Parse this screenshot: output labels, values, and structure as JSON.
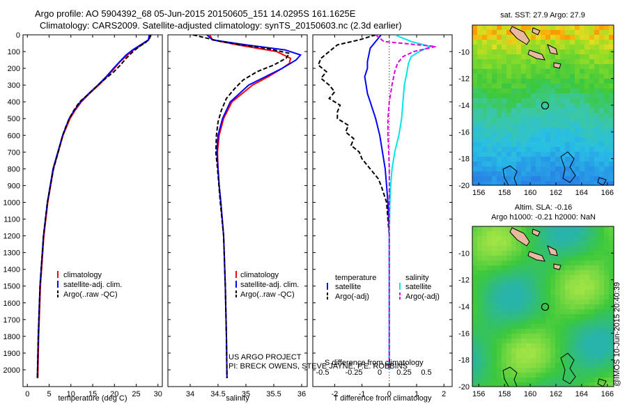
{
  "title_line1": "Argo profile: AO 5904392_68 05-Jun-2015 20150605_151 14.0295S 161.1625E",
  "title_line2": "Climatology: CARS2009. Satellite-adjusted climatology: synTS_20150603.nc (2.3d earlier)",
  "credit": "@IMOS 10-Jun-2015 20:40:39",
  "project_line1": "US ARGO PROJECT",
  "project_line2": "PI: BRECK OWENS, STEVE JAYNE, P.E. ROBBINS",
  "colors": {
    "climatology": "#ff0000",
    "satellite": "#0000ff",
    "argo": "#000000",
    "sal_satellite": "#00e5e5",
    "sal_argo": "#e000e0",
    "land": "#e8b8a0"
  },
  "chart_data": [
    {
      "type": "line",
      "xlabel": "temperature (deg C)",
      "ylabel": "",
      "xlim": [
        -1,
        31
      ],
      "ylim": [
        2100,
        0
      ],
      "xticks": [
        0,
        5,
        10,
        15,
        20,
        25,
        30
      ],
      "yticks": [
        0,
        100,
        200,
        300,
        400,
        500,
        600,
        700,
        800,
        900,
        1000,
        1100,
        1200,
        1300,
        1400,
        1500,
        1600,
        1700,
        1800,
        1900,
        2000
      ],
      "legend": [
        "climatology",
        "satellite-adj. clim.",
        "Argo(..raw -QC)"
      ],
      "series": [
        {
          "name": "climatology",
          "depth": [
            0,
            30,
            60,
            90,
            120,
            160,
            200,
            250,
            300,
            350,
            400,
            450,
            500,
            600,
            700,
            800,
            1000,
            1200,
            1500,
            1800,
            2050
          ],
          "values": [
            28.2,
            27.9,
            26.3,
            24.4,
            23.0,
            21.3,
            20.0,
            18.3,
            16.4,
            14.3,
            12.4,
            11.0,
            9.8,
            8.2,
            7.1,
            6.0,
            4.7,
            3.8,
            3.0,
            2.6,
            2.4
          ]
        },
        {
          "name": "satellite-adj. clim.",
          "depth": [
            0,
            30,
            60,
            90,
            120,
            160,
            200,
            250,
            300,
            350,
            400,
            450,
            500,
            600,
            700,
            800,
            1000,
            1200,
            1500,
            1800,
            2050
          ],
          "values": [
            28.0,
            27.8,
            26.0,
            24.2,
            22.7,
            21.2,
            19.8,
            18.1,
            16.2,
            14.1,
            12.2,
            10.8,
            9.6,
            8.1,
            7.0,
            5.9,
            4.6,
            3.7,
            2.9,
            2.5,
            2.3
          ]
        },
        {
          "name": "Argo(..raw -QC)",
          "depth": [
            0,
            25,
            45,
            70,
            100,
            140,
            180,
            220,
            260,
            300,
            350,
            400,
            450,
            500,
            550,
            600,
            650,
            700,
            800,
            900,
            1000,
            1200,
            1500,
            1800,
            2050
          ],
          "values": [
            28.4,
            28.0,
            27.2,
            25.7,
            24.3,
            22.7,
            21.4,
            19.9,
            18.0,
            16.2,
            14.2,
            12.0,
            10.7,
            9.6,
            8.8,
            8.1,
            7.6,
            7.1,
            6.0,
            5.3,
            4.6,
            3.7,
            2.9,
            2.5,
            2.3
          ]
        }
      ]
    },
    {
      "type": "line",
      "xlabel": "salinity",
      "ylabel": "",
      "xlim": [
        33.6,
        36.1
      ],
      "ylim": [
        2100,
        0
      ],
      "xticks": [
        34,
        34.5,
        35,
        35.5,
        36
      ],
      "legend": [
        "climatology",
        "satellite-adj. clim.",
        "Argo(..raw -QC)"
      ],
      "series": [
        {
          "name": "climatology",
          "depth": [
            0,
            30,
            60,
            100,
            140,
            170,
            200,
            250,
            300,
            400,
            500,
            600,
            700,
            800,
            900,
            1000,
            1200,
            1500,
            1800,
            2050
          ],
          "values": [
            34.35,
            34.4,
            34.85,
            35.55,
            35.8,
            35.78,
            35.65,
            35.4,
            35.12,
            34.75,
            34.6,
            34.52,
            34.49,
            34.5,
            34.52,
            34.55,
            34.6,
            34.63,
            34.65,
            34.66
          ]
        },
        {
          "name": "satellite-adj. clim.",
          "depth": [
            0,
            30,
            60,
            90,
            120,
            150,
            200,
            250,
            300,
            400,
            500,
            600,
            700,
            800,
            900,
            1000,
            1200,
            1500,
            1800,
            2050
          ],
          "values": [
            34.3,
            34.4,
            35.0,
            35.7,
            35.98,
            35.9,
            35.65,
            35.35,
            35.05,
            34.72,
            34.58,
            34.5,
            34.48,
            34.5,
            34.52,
            34.55,
            34.6,
            34.63,
            34.65,
            34.66
          ]
        },
        {
          "name": "Argo(..raw -QC)",
          "depth": [
            0,
            20,
            40,
            60,
            80,
            110,
            140,
            180,
            220,
            270,
            320,
            380,
            450,
            520,
            600,
            700,
            800,
            1000,
            1200,
            1500,
            1800,
            2050
          ],
          "values": [
            34.05,
            34.3,
            34.55,
            34.9,
            35.35,
            35.78,
            35.72,
            35.5,
            35.2,
            34.95,
            34.8,
            34.65,
            34.56,
            34.5,
            34.47,
            34.46,
            34.49,
            34.54,
            34.6,
            34.63,
            34.65,
            34.66
          ]
        }
      ]
    },
    {
      "type": "line",
      "xlabel": "T difference from climatology",
      "xlabel_top": "S difference from climatology",
      "xlim": [
        -2.8,
        2.3
      ],
      "ylim": [
        2100,
        0
      ],
      "xticks": [
        -2,
        -1,
        0,
        1,
        2
      ],
      "xticks_top": [
        "-0.5",
        "-0.25",
        "0",
        "0.25",
        "0.5"
      ],
      "legend_title_left": "temperature",
      "legend_title_right": "salinity",
      "legend": [
        "satellite",
        "Argo(-adj)",
        "satellite",
        "Argo(-adj)"
      ],
      "series": [
        {
          "name": "satellite",
          "kind": "T",
          "depth": [
            0,
            40,
            80,
            120,
            160,
            200,
            250,
            300,
            350,
            400,
            450,
            500,
            600,
            700,
            800,
            900,
            1000,
            1200,
            1500,
            2000
          ],
          "values": [
            -0.3,
            -0.5,
            -0.7,
            -0.75,
            -0.8,
            -0.8,
            -0.9,
            -0.85,
            -0.8,
            -0.7,
            -0.6,
            -0.5,
            -0.35,
            -0.25,
            -0.15,
            -0.1,
            -0.05,
            0,
            0,
            0
          ]
        },
        {
          "name": "Argo(-adj)",
          "kind": "T",
          "depth": [
            0,
            30,
            60,
            100,
            140,
            180,
            220,
            260,
            300,
            340,
            380,
            420,
            460,
            500,
            540,
            580,
            620,
            660,
            700,
            740,
            780,
            820,
            860,
            900,
            950,
            1000,
            1100,
            1200,
            1400,
            1600,
            2000
          ],
          "values": [
            -0.5,
            -1.1,
            -1.9,
            -2.2,
            -2.5,
            -2.6,
            -2.3,
            -2.5,
            -2.2,
            -2.0,
            -2.2,
            -1.8,
            -1.9,
            -1.9,
            -1.5,
            -1.6,
            -1.3,
            -1.4,
            -1.1,
            -1.0,
            -0.8,
            -0.6,
            -0.4,
            -0.3,
            -0.2,
            -0.1,
            -0.05,
            0,
            0,
            0,
            0
          ]
        },
        {
          "name": "satellite",
          "kind": "S",
          "depth": [
            0,
            40,
            70,
            100,
            130,
            170,
            220,
            300,
            400,
            500,
            600,
            700,
            800,
            900,
            1000,
            1200,
            1500,
            2000
          ],
          "values": [
            0.2,
            0.8,
            1.5,
            1.1,
            0.8,
            0.7,
            0.65,
            0.55,
            0.5,
            0.45,
            0.35,
            0.2,
            0.1,
            0.05,
            0.02,
            0,
            0,
            0
          ]
        },
        {
          "name": "Argo(-adj)",
          "kind": "S",
          "depth": [
            0,
            40,
            70,
            100,
            130,
            170,
            220,
            300,
            400,
            500,
            600,
            700,
            800,
            900,
            1000,
            1200,
            1500,
            2000
          ],
          "values": [
            -0.5,
            -0.2,
            1.7,
            0.9,
            0.5,
            0.3,
            0.2,
            0.1,
            0.0,
            -0.05,
            -0.05,
            -0.02,
            0,
            0,
            0,
            0,
            0,
            0
          ]
        }
      ]
    },
    {
      "type": "heatmap",
      "title": "sat. SST: 27.9 Argo: 27.9",
      "xticks": [
        156,
        158,
        160,
        162,
        164,
        166
      ],
      "yticks": [
        -10,
        -12,
        -14,
        -16,
        -18,
        -20
      ],
      "xlim": [
        155.5,
        166.5
      ],
      "ylim": [
        -20,
        -8
      ],
      "marker": {
        "lon": 161.16,
        "lat": -14.03
      }
    },
    {
      "type": "heatmap",
      "title": "Altim. SLA: -0.16",
      "subtitle": "Argo h1000: -0.21 h2000: NaN",
      "xticks": [
        156,
        158,
        160,
        162,
        164,
        166
      ],
      "yticks": [
        -10,
        -12,
        -14,
        -16,
        -18,
        -20
      ],
      "xlim": [
        155.5,
        166.5
      ],
      "ylim": [
        -20,
        -8
      ],
      "marker": {
        "lon": 161.16,
        "lat": -14.03
      }
    }
  ]
}
